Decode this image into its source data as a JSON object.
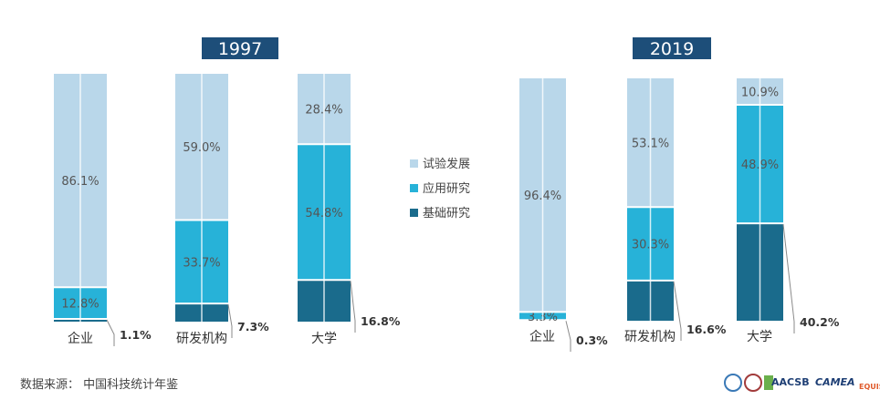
{
  "chart_data": [
    {
      "type": "bar",
      "stacked": true,
      "percent": true,
      "title": "1997",
      "categories": [
        "企业",
        "研发机构",
        "大学"
      ],
      "series": [
        {
          "name": "基础研究",
          "values": [
            1.1,
            7.3,
            16.8
          ],
          "labels": [
            "1.1%",
            "7.3%",
            "16.8%"
          ],
          "color": "#1a6b8c"
        },
        {
          "name": "应用研究",
          "values": [
            12.8,
            33.7,
            54.8
          ],
          "labels": [
            "12.8%",
            "33.7%",
            "54.8%"
          ],
          "color": "#27b2d8"
        },
        {
          "name": "试验发展",
          "values": [
            86.1,
            59.0,
            28.4
          ],
          "labels": [
            "86.1%",
            "59.0%",
            "28.4%"
          ],
          "color": "#b9d7ea"
        }
      ],
      "ylim": [
        0,
        100
      ]
    },
    {
      "type": "bar",
      "stacked": true,
      "percent": true,
      "title": "2019",
      "categories": [
        "企业",
        "研发机构",
        "大学"
      ],
      "series": [
        {
          "name": "基础研究",
          "values": [
            0.3,
            16.6,
            40.2
          ],
          "labels": [
            "0.3%",
            "16.6%",
            "40.2%"
          ],
          "color": "#1a6b8c"
        },
        {
          "name": "应用研究",
          "values": [
            3.3,
            30.3,
            48.9
          ],
          "labels": [
            "3.3%",
            "30.3%",
            "48.9%"
          ],
          "color": "#27b2d8"
        },
        {
          "name": "试验发展",
          "values": [
            96.4,
            53.1,
            10.9
          ],
          "labels": [
            "96.4%",
            "53.1%",
            "10.9%"
          ],
          "color": "#b9d7ea"
        }
      ],
      "ylim": [
        0,
        100
      ]
    }
  ],
  "legend": [
    {
      "label": "试验发展",
      "color": "#b9d7ea"
    },
    {
      "label": "应用研究",
      "color": "#27b2d8"
    },
    {
      "label": "基础研究",
      "color": "#1a6b8c"
    }
  ],
  "title_box_color": "#1d4e79",
  "source": "数据来源：  中国科技统计年鉴"
}
